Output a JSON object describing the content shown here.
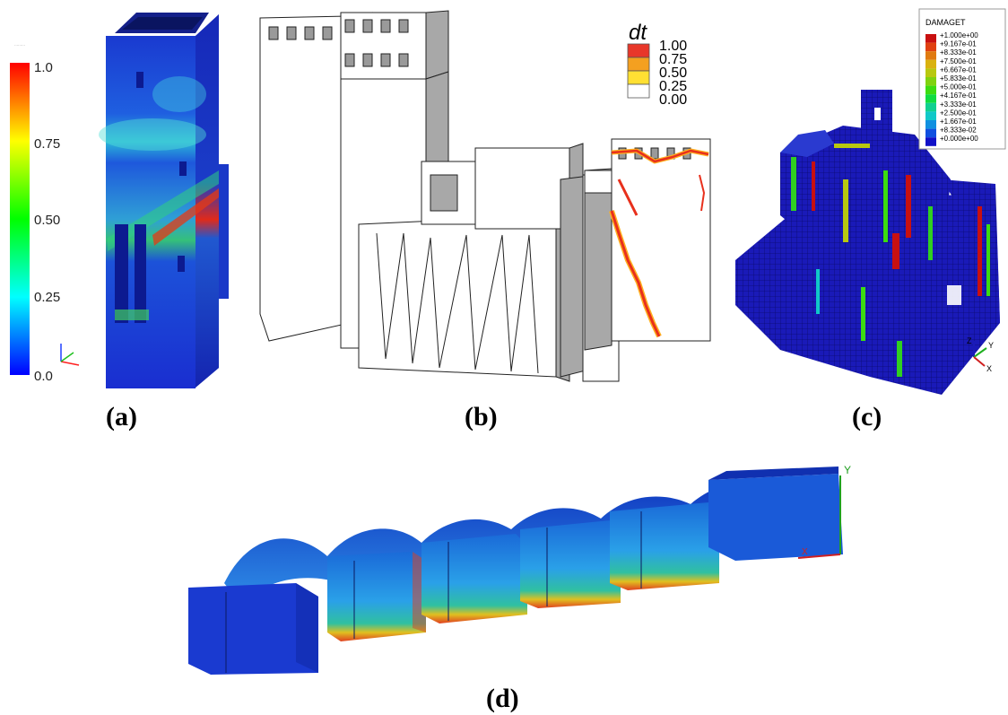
{
  "captions": {
    "a": "(a)",
    "b": "(b)",
    "c": "(c)",
    "d": "(d)"
  },
  "panel_a": {
    "colorbar_ticks": [
      "1.0",
      "0.75",
      "0.50",
      "0.25",
      "0.0"
    ],
    "colors": [
      "#ff0000",
      "#ffff00",
      "#00ff00",
      "#00ffff",
      "#0000ff"
    ]
  },
  "panel_b": {
    "legend_title": "dt",
    "legend_ticks": [
      "1.00",
      "0.75",
      "0.50",
      "0.25",
      "0.00"
    ],
    "legend_colors": [
      "#e8372a",
      "#f4a020",
      "#ffe033",
      "#ffffff"
    ]
  },
  "panel_c": {
    "legend_title": "DAMAGET",
    "legend_values": [
      "+1.000e+00",
      "+9.167e-01",
      "+8.333e-01",
      "+7.500e-01",
      "+6.667e-01",
      "+5.833e-01",
      "+5.000e-01",
      "+4.167e-01",
      "+3.333e-01",
      "+2.500e-01",
      "+1.667e-01",
      "+8.333e-02",
      "+0.000e+00"
    ],
    "legend_colors": [
      "#c81010",
      "#e04010",
      "#e07a10",
      "#d9b20f",
      "#b8c80f",
      "#80d20f",
      "#3cdc10",
      "#10dc40",
      "#10d090",
      "#10c8c8",
      "#1090e0",
      "#1050e0",
      "#1010c8"
    ],
    "axes": [
      "Z",
      "Y",
      "X"
    ]
  },
  "panel_d": {
    "axes": [
      "Y",
      "X"
    ]
  }
}
